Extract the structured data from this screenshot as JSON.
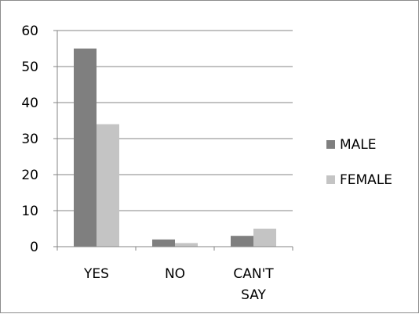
{
  "chart_data": {
    "type": "bar",
    "categories": [
      [
        "YES"
      ],
      [
        "NO"
      ],
      [
        "CAN'T",
        "SAY"
      ]
    ],
    "series": [
      {
        "name": "MALE",
        "values": [
          55,
          2,
          3
        ],
        "color": "#7f7f7f"
      },
      {
        "name": "FEMALE",
        "values": [
          34,
          1,
          5
        ],
        "color": "#c4c4c4"
      }
    ],
    "ylim": [
      0,
      60
    ],
    "yticks": [
      0,
      10,
      20,
      30,
      40,
      50,
      60
    ],
    "grid": true,
    "legend": "right"
  }
}
